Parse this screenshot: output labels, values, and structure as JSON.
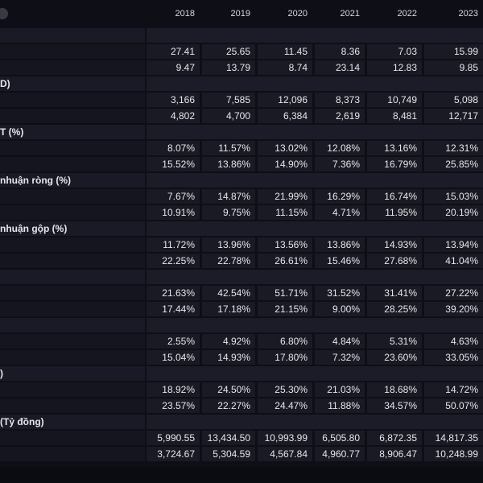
{
  "header": {
    "years": [
      "2018",
      "2019",
      "2020",
      "2021",
      "2022",
      "2023"
    ]
  },
  "rows": [
    {
      "type": "section",
      "label": ""
    },
    {
      "type": "data",
      "values": [
        "27.41",
        "25.65",
        "11.45",
        "8.36",
        "7.03",
        "15.99"
      ]
    },
    {
      "type": "data",
      "values": [
        "9.47",
        "13.79",
        "8.74",
        "23.14",
        "12.83",
        "9.85"
      ]
    },
    {
      "type": "section",
      "label": "D)"
    },
    {
      "type": "data",
      "values": [
        "3,166",
        "7,585",
        "12,096",
        "8,373",
        "10,749",
        "5,098"
      ]
    },
    {
      "type": "data",
      "values": [
        "4,802",
        "4,700",
        "6,384",
        "2,619",
        "8,481",
        "12,717"
      ]
    },
    {
      "type": "section",
      "label": "T (%)"
    },
    {
      "type": "data",
      "values": [
        "8.07%",
        "11.57%",
        "13.02%",
        "12.08%",
        "13.16%",
        "12.31%"
      ]
    },
    {
      "type": "data",
      "values": [
        "15.52%",
        "13.86%",
        "14.90%",
        "7.36%",
        "16.79%",
        "25.85%"
      ]
    },
    {
      "type": "section",
      "label": "nhuận ròng (%)"
    },
    {
      "type": "data",
      "values": [
        "7.67%",
        "14.87%",
        "21.99%",
        "16.29%",
        "16.74%",
        "15.03%"
      ]
    },
    {
      "type": "data",
      "values": [
        "10.91%",
        "9.75%",
        "11.15%",
        "4.71%",
        "11.95%",
        "20.19%"
      ]
    },
    {
      "type": "section",
      "label": "nhuận gộp (%)"
    },
    {
      "type": "data",
      "values": [
        "11.72%",
        "13.96%",
        "13.56%",
        "13.86%",
        "14.93%",
        "13.94%"
      ]
    },
    {
      "type": "data",
      "values": [
        "22.25%",
        "22.78%",
        "26.61%",
        "15.46%",
        "27.68%",
        "41.04%"
      ]
    },
    {
      "type": "section",
      "label": ""
    },
    {
      "type": "data",
      "values": [
        "21.63%",
        "42.54%",
        "51.71%",
        "31.52%",
        "31.41%",
        "27.22%"
      ]
    },
    {
      "type": "data",
      "values": [
        "17.44%",
        "17.18%",
        "21.15%",
        "9.00%",
        "28.25%",
        "39.20%"
      ]
    },
    {
      "type": "section",
      "label": ""
    },
    {
      "type": "data",
      "values": [
        "2.55%",
        "4.92%",
        "6.80%",
        "4.84%",
        "5.31%",
        "4.63%"
      ]
    },
    {
      "type": "data",
      "values": [
        "15.04%",
        "14.93%",
        "17.80%",
        "7.32%",
        "23.60%",
        "33.05%"
      ]
    },
    {
      "type": "section",
      "label": ")"
    },
    {
      "type": "data",
      "values": [
        "18.92%",
        "24.50%",
        "25.30%",
        "21.03%",
        "18.68%",
        "14.72%"
      ]
    },
    {
      "type": "data",
      "values": [
        "23.57%",
        "22.27%",
        "24.47%",
        "11.88%",
        "34.57%",
        "50.07%"
      ]
    },
    {
      "type": "section",
      "label": "(Tỷ đồng)"
    },
    {
      "type": "data",
      "values": [
        "5,990.55",
        "13,434.50",
        "10,993.99",
        "6,505.80",
        "6,872.35",
        "14,817.35"
      ]
    },
    {
      "type": "data",
      "values": [
        "3,724.67",
        "5,304.59",
        "4,567.84",
        "4,960.77",
        "8,906.47",
        "10,248.99"
      ]
    }
  ]
}
